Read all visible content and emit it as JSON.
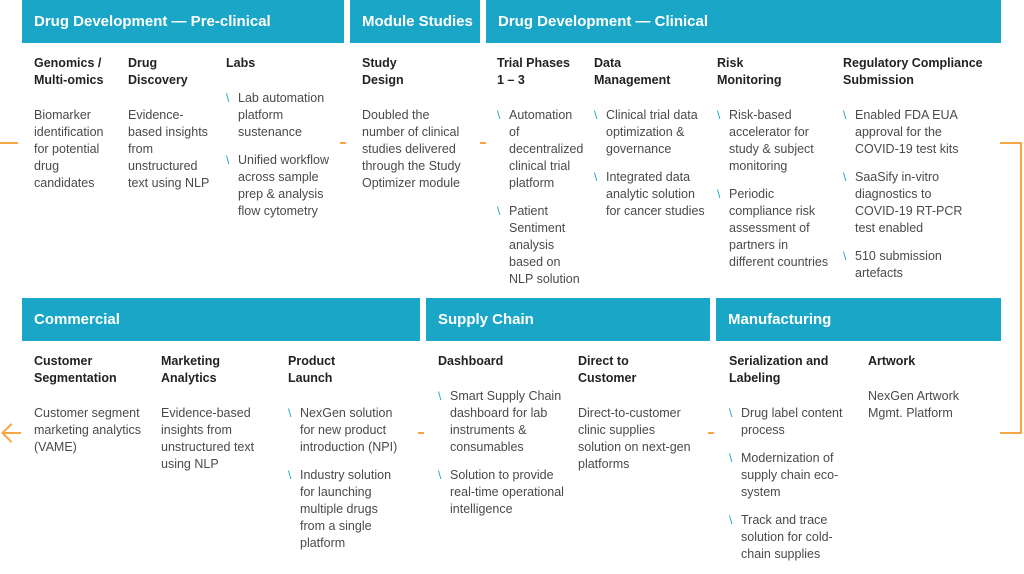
{
  "headers": {
    "preclinical": "Drug Development — Pre-clinical",
    "module": "Module Studies",
    "clinical": "Drug Development — Clinical",
    "commercial": "Commercial",
    "supply": "Supply Chain",
    "manufacturing": "Manufacturing"
  },
  "columns": {
    "genomics": {
      "title": "Genomics /\nMulti-omics",
      "text": "Biomarker\nidentification\nfor potential\ndrug\ncandidates"
    },
    "discovery": {
      "title": "Drug\nDiscovery",
      "text": "Evidence-\nbased insights\nfrom\nunstructured\ntext using NLP"
    },
    "labs": {
      "title": "Labs",
      "items": [
        "Lab automation\nplatform\nsustenance",
        "Unified workflow\nacross sample\nprep & analysis\nflow cytometry"
      ]
    },
    "study": {
      "title": "Study\nDesign",
      "text": "Doubled the\nnumber of clinical\nstudies delivered\nthrough the Study\nOptimizer module"
    },
    "trial": {
      "title": "Trial Phases\n1 – 3",
      "items": [
        "Automation\nof\ndecentralized\nclinical trial\nplatform",
        "Patient\nSentiment\nanalysis\nbased on\nNLP solution"
      ]
    },
    "data_mgmt": {
      "title": "Data\nManagement",
      "items": [
        "Clinical trial data\noptimization &\ngovernance",
        "Integrated data\nanalytic solution\nfor cancer studies"
      ]
    },
    "risk": {
      "title": "Risk\nMonitoring",
      "items": [
        "Risk-based\naccelerator for\nstudy & subject\nmonitoring",
        "Periodic\ncompliance risk\nassessment of\npartners in\ndifferent countries"
      ]
    },
    "regulatory": {
      "title": "Regulatory Compliance\nSubmission",
      "items": [
        "Enabled FDA EUA\napproval for the\nCOVID-19 test kits",
        "SaaSify in-vitro\ndiagnostics to\nCOVID-19 RT-PCR\ntest enabled",
        "510 submission\nartefacts"
      ]
    },
    "segmentation": {
      "title": "Customer\nSegmentation",
      "text": "Customer segment\nmarketing analytics\n(VAME)"
    },
    "marketing": {
      "title": "Marketing\nAnalytics",
      "text": "Evidence-based\ninsights from\nunstructured text\nusing NLP"
    },
    "launch": {
      "title": "Product\nLaunch",
      "items": [
        "NexGen solution\nfor new product\nintroduction (NPI)",
        "Industry solution\nfor launching\nmultiple drugs\nfrom a single\nplatform"
      ]
    },
    "dashboard": {
      "title": "Dashboard",
      "items": [
        "Smart Supply Chain\ndashboard for lab\ninstruments &\nconsumables",
        "Solution to provide\nreal-time operational\nintelligence"
      ]
    },
    "direct": {
      "title": "Direct to\nCustomer",
      "text": "Direct-to-customer\nclinic supplies\nsolution on next-gen\nplatforms"
    },
    "serialization": {
      "title": "Serialization and\nLabeling",
      "items": [
        "Drug label content\nprocess",
        "Modernization of\nsupply chain eco-\nsystem",
        "Track and trace\nsolution for cold-\nchain supplies"
      ]
    },
    "artwork": {
      "title": "Artwork",
      "text": "NexGen Artwork\nMgmt. Platform"
    }
  },
  "colors": {
    "header": "#1aa6c7",
    "connector": "#f4a742"
  }
}
